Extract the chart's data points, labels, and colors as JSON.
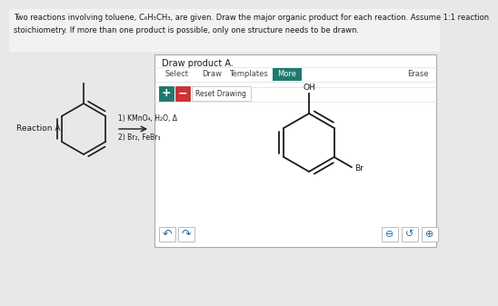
{
  "bg_color": "#e8e8e8",
  "panel_bg": "#f5f5f5",
  "panel_border": "#cccccc",
  "dark": "#1a1a1a",
  "light_gray": "#bbbbbb",
  "more_btn_color": "#1e7a6e",
  "green_btn_color": "#1e7a6e",
  "red_btn_color": "#cc3333",
  "title_line1": "Two reactions involving toluene, C₆H₅CH₃, are given. Draw the major organic product for each reaction. Assume 1:1 reaction",
  "title_line2": "stoichiometry. If more than one product is possible, only one structure needs to be drawn.",
  "draw_product_label": "Draw product A.",
  "reaction_label": "Reaction A.",
  "reaction_step1": "1) KMnO₄, H₂O, Δ",
  "reaction_step2": "2) Br₂, FeBr₃"
}
